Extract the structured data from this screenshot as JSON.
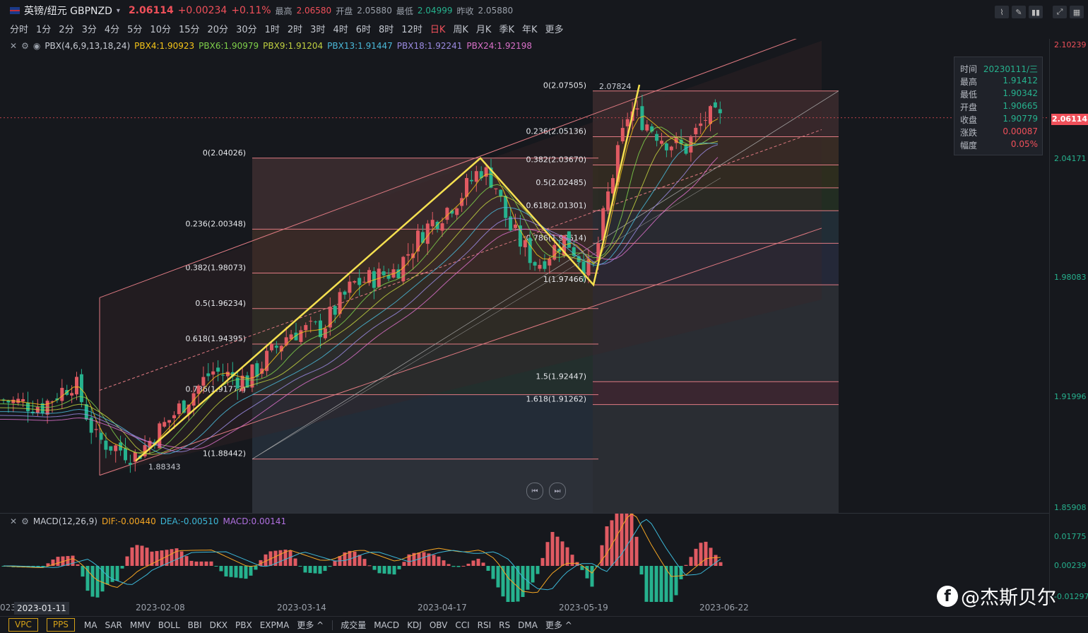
{
  "header": {
    "symbol": "英镑/纽元 GBPNZD",
    "price": "2.06114",
    "change": "+0.00234",
    "change_pct": "+0.11%",
    "high_label": "最高",
    "high": "2.06580",
    "open_label": "开盘",
    "open": "2.05880",
    "low_label": "最低",
    "low": "2.04999",
    "prev_label": "昨收",
    "prev": "2.05880"
  },
  "periods": [
    "分时",
    "1分",
    "2分",
    "3分",
    "4分",
    "5分",
    "10分",
    "15分",
    "20分",
    "30分",
    "1时",
    "2时",
    "3时",
    "4时",
    "6时",
    "8时",
    "12时",
    "日K",
    "周K",
    "月K",
    "季K",
    "年K",
    "更多"
  ],
  "active_period": "日K",
  "indicator_line": {
    "name": "PBX(4,6,9,13,18,24)",
    "items": [
      {
        "text": "PBX4:1.90923",
        "color": "#f5c518"
      },
      {
        "text": "PBX6:1.90979",
        "color": "#7fd04a"
      },
      {
        "text": "PBX9:1.91204",
        "color": "#c0d040"
      },
      {
        "text": "PBX13:1.91447",
        "color": "#4ab8d8"
      },
      {
        "text": "PBX18:1.92241",
        "color": "#9a8ae0"
      },
      {
        "text": "PBX24:1.92198",
        "color": "#d870c8"
      }
    ]
  },
  "fib_left": [
    "0(2.04026)",
    "0.236(2.00348)",
    "0.382(1.98073)",
    "0.5(1.96234)",
    "0.618(1.94395)",
    "0.786(1.91777)",
    "1(1.88442)"
  ],
  "fib_right": [
    "0(2.07505)",
    "0.236(2.05136)",
    "0.382(2.03670)",
    "0.5(2.02485)",
    "0.618(2.01301)",
    "0.786(1.99614)",
    "1(1.97466)",
    "1.5(1.92447)",
    "1.618(1.91262)"
  ],
  "low_mark": "1.88343",
  "high_mark": "2.07824",
  "yaxis": {
    "labels": [
      "2.10239",
      "2.04171",
      "1.98083",
      "1.91996",
      "1.85908"
    ],
    "current": "2.06114",
    "macd_labels": [
      "0.01775",
      "0.00239",
      "-0.01297"
    ]
  },
  "tooltip": {
    "rows": [
      {
        "k": "时间",
        "v": "20230111/三"
      },
      {
        "k": "最高",
        "v": "1.91412"
      },
      {
        "k": "最低",
        "v": "1.90342"
      },
      {
        "k": "开盘",
        "v": "1.90665"
      },
      {
        "k": "收盘",
        "v": "1.90779"
      },
      {
        "k": "涨跌",
        "v": "0.00087"
      },
      {
        "k": "幅度",
        "v": "0.05%"
      }
    ]
  },
  "macd_line": {
    "name": "MACD(12,26,9)",
    "dif": "DIF:-0.00440",
    "dea": "DEA:-0.00510",
    "macd": "MACD:0.00141"
  },
  "xaxis": {
    "selected": "2023-01-11",
    "left_cut": "023",
    "dates": [
      "2023-02-08",
      "2023-03-14",
      "2023-04-17",
      "2023-05-19",
      "2023-06-22"
    ]
  },
  "bottom": {
    "chips": [
      "VPC",
      "PPS"
    ],
    "main_inds": [
      "MA",
      "SAR",
      "MMV",
      "BOLL",
      "BBI",
      "DKX",
      "PBX",
      "EXPMA",
      "更多 ^"
    ],
    "sub_inds": [
      "成交量",
      "MACD",
      "KDJ",
      "OBV",
      "CCI",
      "RSI",
      "RS",
      "DMA",
      "更多 ^"
    ]
  },
  "watermark": "@杰斯贝尔"
}
